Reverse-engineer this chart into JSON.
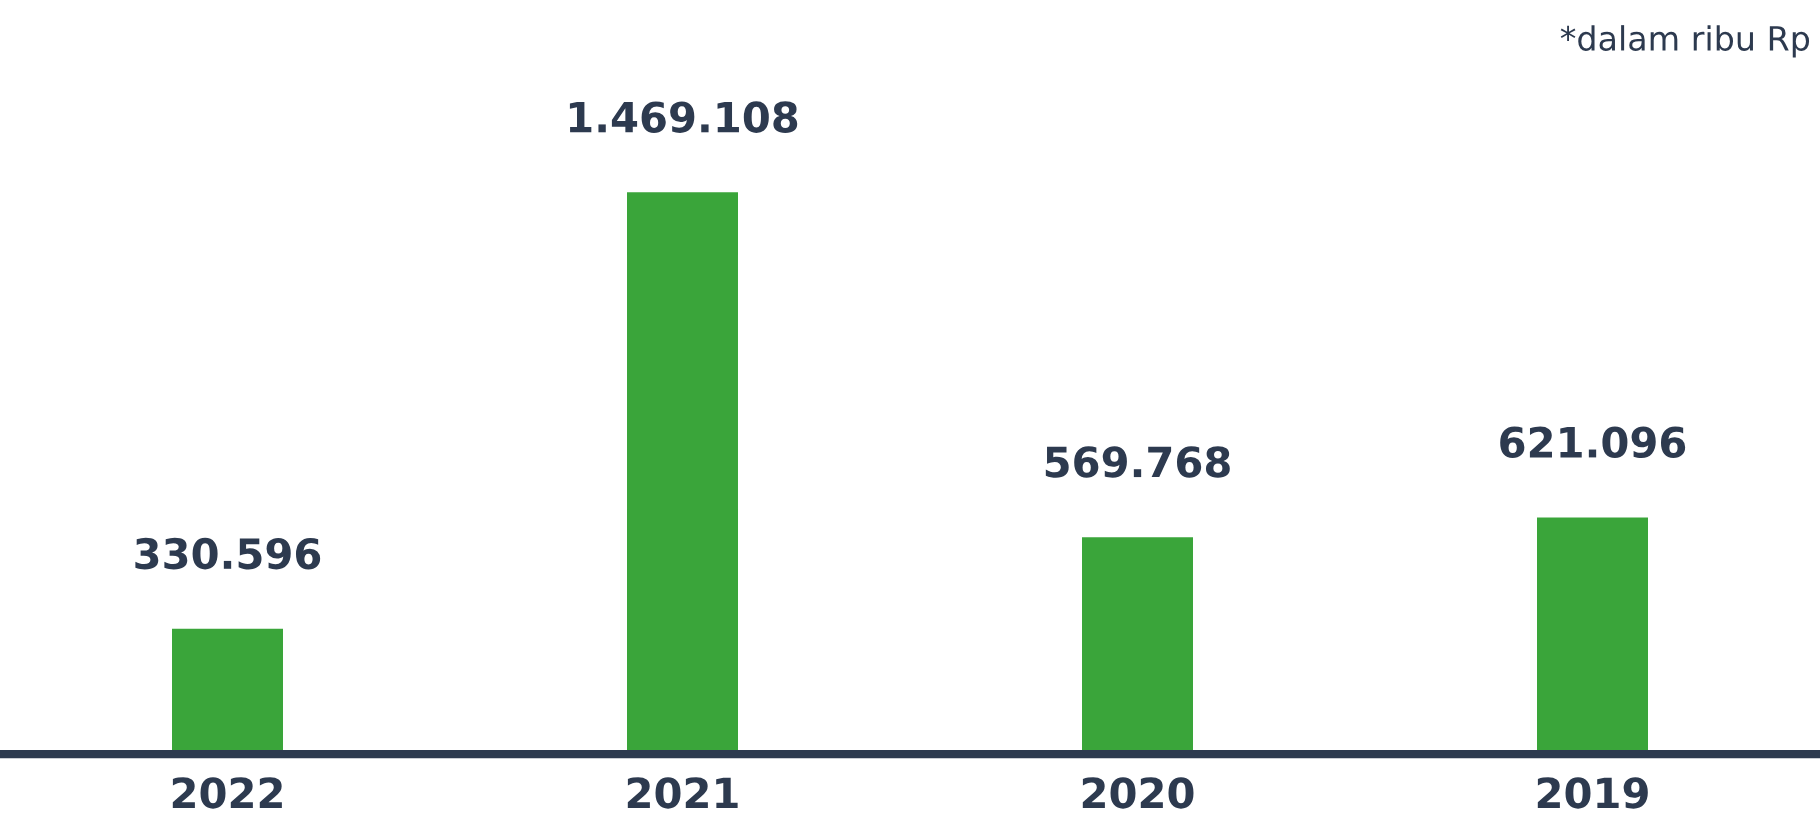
{
  "chart_data": {
    "type": "bar",
    "categories": [
      "2022",
      "2021",
      "2020",
      "2019"
    ],
    "values": [
      330596,
      1469108,
      569768,
      621096
    ],
    "value_labels": [
      "330.596",
      "1.469.108",
      "569.768",
      "621.096"
    ],
    "color": "#3aa53a",
    "annotations": [
      "*dalam ribu Rp"
    ],
    "grid": false,
    "legend": false
  }
}
